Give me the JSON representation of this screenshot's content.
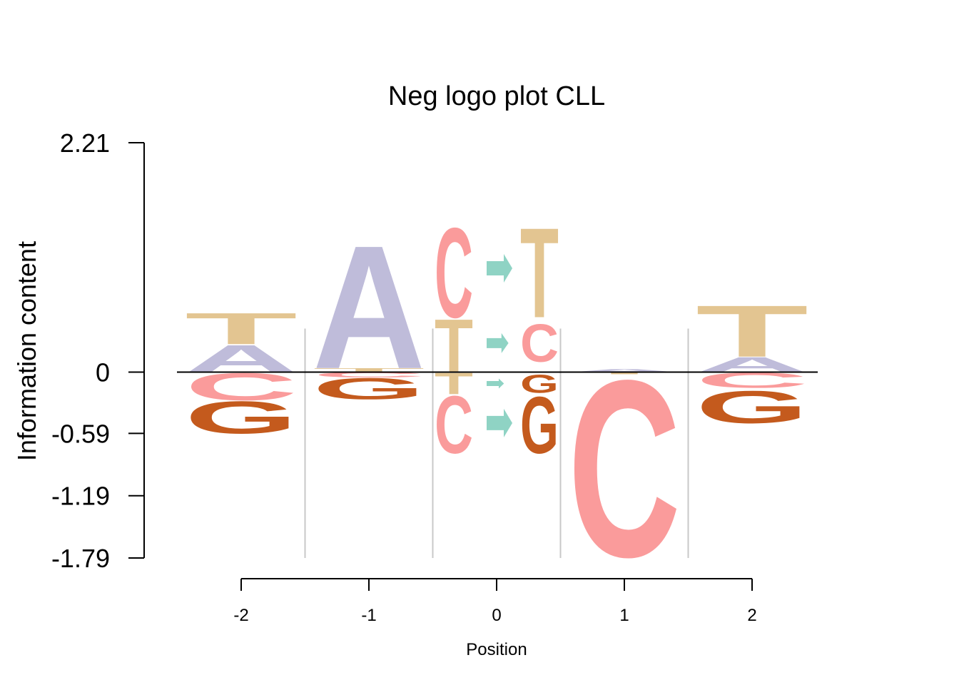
{
  "chart_data": {
    "type": "logo",
    "title": "Neg logo plot CLL",
    "xlabel": "Position",
    "ylabel": "Information content",
    "ylim": [
      -1.79,
      2.21
    ],
    "yticks": [
      "2.21",
      "0",
      "-0.59",
      "-1.19",
      "-1.79"
    ],
    "ytick_values": [
      2.21,
      0,
      -0.59,
      -1.19,
      -1.79
    ],
    "positions": [
      "-2",
      "-1",
      "0",
      "1",
      "2"
    ],
    "colors": {
      "A": "#bfbcda",
      "C": "#fa9b9b",
      "G": "#c45a1d",
      "T": "#e3c591",
      "arrow": "#8fd3c4"
    },
    "columns": [
      {
        "position": "-2",
        "letters": [
          {
            "letter": "A",
            "from": 0,
            "to": 0.27
          },
          {
            "letter": "T",
            "from": 0.27,
            "to": 0.58
          },
          {
            "letter": "C",
            "from": 0,
            "to": -0.27
          },
          {
            "letter": "G",
            "from": -0.27,
            "to": -0.59
          }
        ]
      },
      {
        "position": "-1",
        "letters": [
          {
            "letter": "T",
            "from": 0,
            "to": 0.04
          },
          {
            "letter": "A",
            "from": 0.04,
            "to": 1.26
          },
          {
            "letter": "C",
            "from": 0,
            "to": -0.05
          },
          {
            "letter": "G",
            "from": -0.05,
            "to": -0.26
          }
        ]
      },
      {
        "position": "1",
        "letters": [
          {
            "letter": "A",
            "from": 0,
            "to": 0.03
          },
          {
            "letter": "T",
            "from": 0,
            "to": -0.02
          },
          {
            "letter": "C",
            "from": -0.02,
            "to": -1.77
          }
        ]
      },
      {
        "position": "2",
        "letters": [
          {
            "letter": "A",
            "from": 0,
            "to": 0.15
          },
          {
            "letter": "T",
            "from": 0.15,
            "to": 0.66
          },
          {
            "letter": "C",
            "from": 0,
            "to": -0.15
          },
          {
            "letter": "G",
            "from": -0.17,
            "to": -0.49
          }
        ]
      }
    ],
    "substitutions": {
      "position": "0",
      "rows": [
        {
          "ref": "C",
          "alt": "T",
          "ref_range": [
            0.53,
            1.42
          ],
          "alt_range": [
            0.53,
            1.42
          ],
          "arrow_y": 1.0,
          "arrow_size": 1.0
        },
        {
          "ref": "T",
          "alt": "C",
          "ref_range": [
            0,
            0.53
          ],
          "alt_range": [
            0.1,
            0.47
          ],
          "arrow_y": 0.28,
          "arrow_size": 0.7
        },
        {
          "ref": "T",
          "alt": "G",
          "ref_range": [
            0,
            -0.21
          ],
          "alt_range": [
            -0.02,
            -0.2
          ],
          "arrow_y": -0.11,
          "arrow_size": 0.35
        },
        {
          "ref": "C",
          "alt": "G",
          "ref_range": [
            -0.21,
            -0.78
          ],
          "alt_range": [
            -0.22,
            -0.78
          ],
          "arrow_y": -0.49,
          "arrow_size": 1.0
        }
      ]
    }
  }
}
